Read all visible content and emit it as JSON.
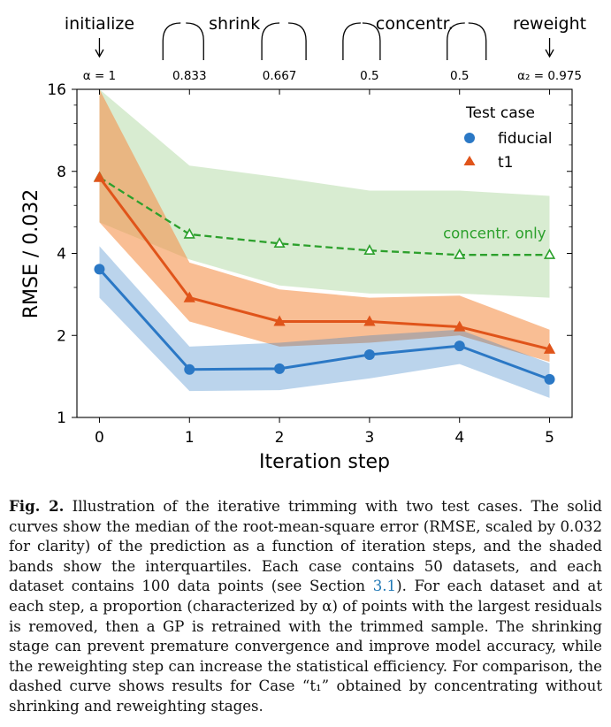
{
  "chart_data": {
    "type": "line",
    "xlabel": "Iteration step",
    "ylabel": "RMSE / 0.032",
    "yscale": "log",
    "ylim": [
      1,
      16
    ],
    "xlim": [
      -0.25,
      5.25
    ],
    "x": [
      0,
      1,
      2,
      3,
      4,
      5
    ],
    "xtick_labels": [
      "0",
      "1",
      "2",
      "3",
      "4",
      "5"
    ],
    "ytick_labels": [
      "1",
      "2",
      "4",
      "8",
      "16"
    ],
    "yticks": [
      1,
      2,
      4,
      8,
      16
    ],
    "top_axis": {
      "tick_labels": [
        "α = 1",
        "0.833",
        "0.667",
        "0.5",
        "0.5",
        "α₂ = 0.975"
      ],
      "stage_labels": [
        "initialize",
        "shrink",
        "concentr.",
        "reweight"
      ]
    },
    "legend": {
      "title": "Test case",
      "placement": "top-right"
    },
    "series": [
      {
        "name": "fiducial",
        "color": "#2b78c5",
        "marker": "circle",
        "line_style": "solid",
        "values": [
          3.5,
          1.5,
          1.51,
          1.7,
          1.83,
          1.38
        ],
        "band_low": [
          2.75,
          1.25,
          1.26,
          1.39,
          1.57,
          1.18
        ],
        "band_high": [
          4.25,
          1.82,
          1.88,
          2.0,
          2.1,
          1.58
        ]
      },
      {
        "name": "t1",
        "color": "#e0541a",
        "marker": "triangle",
        "line_style": "solid",
        "values": [
          7.6,
          2.75,
          2.25,
          2.25,
          2.15,
          1.78
        ],
        "band_low": [
          5.2,
          2.25,
          1.82,
          1.88,
          2.0,
          1.6
        ],
        "band_high": [
          16,
          3.7,
          2.95,
          2.75,
          2.8,
          2.1
        ]
      },
      {
        "name": "concentr. only",
        "color": "#2ca02c",
        "marker": "triangle-open",
        "line_style": "dashed",
        "values": [
          7.6,
          4.7,
          4.35,
          4.1,
          3.95,
          3.95
        ],
        "band_low": [
          5.2,
          3.8,
          3.05,
          2.85,
          2.85,
          2.75
        ],
        "band_high": [
          16,
          8.4,
          7.6,
          6.8,
          6.8,
          6.5
        ]
      }
    ],
    "annotations": [
      "concentr. only"
    ]
  },
  "caption": {
    "label": "Fig. 2.",
    "text_before_ref": "Illustration of the iterative trimming with two test cases. The solid curves show the median of the root-mean-square error (RMSE, scaled by 0.032 for clarity) of the prediction as a function of iteration steps, and the shaded bands show the interquartiles. Each case contains 50 datasets, and each dataset contains 100 data points (see Section ",
    "ref": "3.1",
    "text_after_ref": "). For each dataset and at each step, a proportion (characterized by α) of points with the largest residuals is removed, then a GP is retrained with the trimmed sample. The shrinking stage can prevent premature convergence and improve model accuracy, while the reweighting step can increase the statistical efficiency. For comparison, the dashed curve shows results for Case “t₁” obtained by concentrating without shrinking and reweighting stages."
  }
}
